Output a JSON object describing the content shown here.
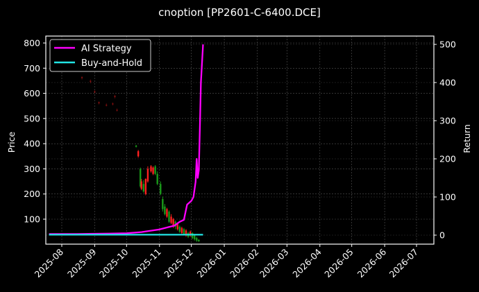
{
  "chart_data": {
    "type": "line",
    "title": "cnoption [PP2601-C-6400.DCE]",
    "xlabel": "",
    "ylabel": "Price",
    "ylabel_right": "Return",
    "grid": true,
    "legend_position": "upper left",
    "legend": [
      "AI Strategy",
      "Buy-and-Hold"
    ],
    "x_ticks": [
      "2025-08",
      "2025-09",
      "2025-10",
      "2025-11",
      "2025-12",
      "2026-01",
      "2026-02",
      "2026-03",
      "2026-04",
      "2026-05",
      "2026-06",
      "2026-07"
    ],
    "y_left_ticks": [
      100,
      200,
      300,
      400,
      500,
      600,
      700,
      800
    ],
    "y_right_ticks": [
      0,
      100,
      200,
      300,
      400,
      500
    ],
    "ylim_left": [
      10,
      830
    ],
    "ylim_right": [
      -20,
      520
    ],
    "colors": {
      "background": "#000000",
      "ai_strategy": "#ff00ff",
      "buy_and_hold": "#22e5e5",
      "candle_up": "#ff2020",
      "candle_down": "#1a9a1a",
      "grid": "#555555"
    },
    "series": [
      {
        "name": "AI Strategy",
        "axis": "right",
        "x": [
          "2025-07-20",
          "2025-08-15",
          "2025-09-15",
          "2025-10-01",
          "2025-10-15",
          "2025-10-25",
          "2025-11-01",
          "2025-11-08",
          "2025-11-15",
          "2025-11-20",
          "2025-11-24",
          "2025-11-27",
          "2025-12-01",
          "2025-12-03",
          "2025-12-05",
          "2025-12-06",
          "2025-12-07",
          "2025-12-08",
          "2025-12-09",
          "2025-12-10",
          "2025-12-12"
        ],
        "values": [
          3,
          3,
          4,
          5,
          8,
          12,
          15,
          20,
          25,
          35,
          40,
          80,
          90,
          100,
          140,
          200,
          150,
          170,
          280,
          400,
          500
        ]
      },
      {
        "name": "Buy-and-Hold",
        "axis": "right",
        "x": [
          "2025-07-20",
          "2025-12-12"
        ],
        "values": [
          1,
          1
        ]
      }
    ],
    "candles": [
      {
        "date": "2025-08-20",
        "open": 665,
        "close": 660,
        "high": 668,
        "low": 655,
        "dir": "up"
      },
      {
        "date": "2025-08-28",
        "open": 650,
        "close": 645,
        "high": 655,
        "low": 640,
        "dir": "up"
      },
      {
        "date": "2025-09-01",
        "open": 608,
        "close": 604,
        "high": 612,
        "low": 600,
        "dir": "up"
      },
      {
        "date": "2025-09-05",
        "open": 565,
        "close": 560,
        "high": 568,
        "low": 556,
        "dir": "up"
      },
      {
        "date": "2025-09-12",
        "open": 555,
        "close": 552,
        "high": 560,
        "low": 548,
        "dir": "up"
      },
      {
        "date": "2025-09-18",
        "open": 560,
        "close": 556,
        "high": 564,
        "low": 552,
        "dir": "up"
      },
      {
        "date": "2025-09-20",
        "open": 590,
        "close": 585,
        "high": 594,
        "low": 580,
        "dir": "up"
      },
      {
        "date": "2025-09-22",
        "open": 535,
        "close": 532,
        "high": 540,
        "low": 528,
        "dir": "up"
      },
      {
        "date": "2025-10-10",
        "open": 392,
        "close": 388,
        "high": 395,
        "low": 385,
        "dir": "down"
      },
      {
        "date": "2025-10-12",
        "open": 370,
        "close": 350,
        "high": 375,
        "low": 345,
        "dir": "up"
      },
      {
        "date": "2025-10-14",
        "open": 300,
        "close": 230,
        "high": 305,
        "low": 225,
        "dir": "down"
      },
      {
        "date": "2025-10-15",
        "open": 250,
        "close": 220,
        "high": 260,
        "low": 215,
        "dir": "up"
      },
      {
        "date": "2025-10-17",
        "open": 240,
        "close": 210,
        "high": 255,
        "low": 205,
        "dir": "down"
      },
      {
        "date": "2025-10-19",
        "open": 260,
        "close": 200,
        "high": 262,
        "low": 195,
        "dir": "up"
      },
      {
        "date": "2025-10-21",
        "open": 300,
        "close": 250,
        "high": 310,
        "low": 245,
        "dir": "up"
      },
      {
        "date": "2025-10-24",
        "open": 310,
        "close": 290,
        "high": 315,
        "low": 285,
        "dir": "up"
      },
      {
        "date": "2025-10-26",
        "open": 305,
        "close": 280,
        "high": 310,
        "low": 275,
        "dir": "up"
      },
      {
        "date": "2025-10-28",
        "open": 310,
        "close": 280,
        "high": 315,
        "low": 275,
        "dir": "down"
      },
      {
        "date": "2025-10-30",
        "open": 280,
        "close": 240,
        "high": 290,
        "low": 235,
        "dir": "down"
      },
      {
        "date": "2025-11-02",
        "open": 240,
        "close": 200,
        "high": 250,
        "low": 195,
        "dir": "down"
      },
      {
        "date": "2025-11-04",
        "open": 180,
        "close": 140,
        "high": 190,
        "low": 130,
        "dir": "down"
      },
      {
        "date": "2025-11-06",
        "open": 150,
        "close": 120,
        "high": 160,
        "low": 115,
        "dir": "down"
      },
      {
        "date": "2025-11-08",
        "open": 140,
        "close": 110,
        "high": 145,
        "low": 105,
        "dir": "up"
      },
      {
        "date": "2025-11-10",
        "open": 130,
        "close": 90,
        "high": 135,
        "low": 85,
        "dir": "down"
      },
      {
        "date": "2025-11-12",
        "open": 110,
        "close": 85,
        "high": 120,
        "low": 80,
        "dir": "up"
      },
      {
        "date": "2025-11-14",
        "open": 100,
        "close": 70,
        "high": 105,
        "low": 65,
        "dir": "up"
      },
      {
        "date": "2025-11-16",
        "open": 90,
        "close": 70,
        "high": 95,
        "low": 60,
        "dir": "down"
      },
      {
        "date": "2025-11-18",
        "open": 80,
        "close": 60,
        "high": 85,
        "low": 55,
        "dir": "up"
      },
      {
        "date": "2025-11-20",
        "open": 70,
        "close": 50,
        "high": 75,
        "low": 45,
        "dir": "down"
      },
      {
        "date": "2025-11-22",
        "open": 65,
        "close": 45,
        "high": 70,
        "low": 40,
        "dir": "up"
      },
      {
        "date": "2025-11-24",
        "open": 60,
        "close": 40,
        "high": 65,
        "low": 35,
        "dir": "down"
      },
      {
        "date": "2025-11-26",
        "open": 55,
        "close": 35,
        "high": 60,
        "low": 30,
        "dir": "up"
      },
      {
        "date": "2025-11-28",
        "open": 45,
        "close": 30,
        "high": 50,
        "low": 25,
        "dir": "down"
      },
      {
        "date": "2025-11-30",
        "open": 50,
        "close": 35,
        "high": 55,
        "low": 30,
        "dir": "up"
      },
      {
        "date": "2025-12-02",
        "open": 45,
        "close": 25,
        "high": 48,
        "low": 20,
        "dir": "down"
      },
      {
        "date": "2025-12-04",
        "open": 35,
        "close": 20,
        "high": 40,
        "low": 15,
        "dir": "down"
      },
      {
        "date": "2025-12-06",
        "open": 25,
        "close": 15,
        "high": 30,
        "low": 10,
        "dir": "down"
      },
      {
        "date": "2025-12-08",
        "open": 18,
        "close": 12,
        "high": 20,
        "low": 10,
        "dir": "down"
      }
    ]
  }
}
